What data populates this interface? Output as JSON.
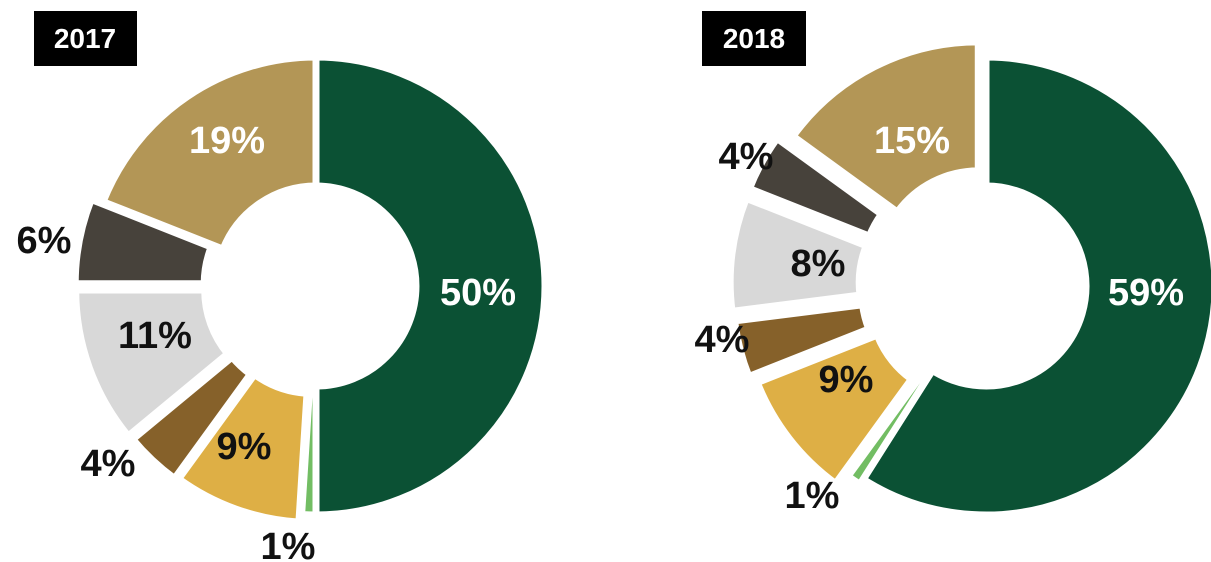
{
  "chart_data": [
    {
      "type": "pie",
      "year": "2017",
      "slices": [
        {
          "value": 50,
          "label": "50%",
          "color": "#0b5134",
          "text_color": "#ffffff",
          "label_placement": "inside"
        },
        {
          "value": 1,
          "label": "1%",
          "color": "#72bd63",
          "text_color": "#111111",
          "label_placement": "outside"
        },
        {
          "value": 9,
          "label": "9%",
          "color": "#deaf45",
          "text_color": "#111111",
          "label_placement": "inside"
        },
        {
          "value": 4,
          "label": "4%",
          "color": "#86612a",
          "text_color": "#111111",
          "label_placement": "outside"
        },
        {
          "value": 11,
          "label": "11%",
          "color": "#d8d8d8",
          "text_color": "#111111",
          "label_placement": "inside"
        },
        {
          "value": 6,
          "label": "6%",
          "color": "#47423b",
          "text_color": "#111111",
          "label_placement": "outside"
        },
        {
          "value": 19,
          "label": "19%",
          "color": "#b39656",
          "text_color": "#ffffff",
          "label_placement": "inside"
        }
      ]
    },
    {
      "type": "pie",
      "year": "2018",
      "slices": [
        {
          "value": 59,
          "label": "59%",
          "color": "#0b5134",
          "text_color": "#ffffff",
          "label_placement": "inside"
        },
        {
          "value": 1,
          "label": "1%",
          "color": "#72bd63",
          "text_color": "#111111",
          "label_placement": "outside"
        },
        {
          "value": 9,
          "label": "9%",
          "color": "#deaf45",
          "text_color": "#111111",
          "label_placement": "inside"
        },
        {
          "value": 4,
          "label": "4%",
          "color": "#86612a",
          "text_color": "#111111",
          "label_placement": "outside"
        },
        {
          "value": 8,
          "label": "8%",
          "color": "#d8d8d8",
          "text_color": "#111111",
          "label_placement": "inside"
        },
        {
          "value": 4,
          "label": "4%",
          "color": "#47423b",
          "text_color": "#111111",
          "label_placement": "outside"
        },
        {
          "value": 15,
          "label": "15%",
          "color": "#b39656",
          "text_color": "#ffffff",
          "label_placement": "inside"
        }
      ]
    }
  ]
}
